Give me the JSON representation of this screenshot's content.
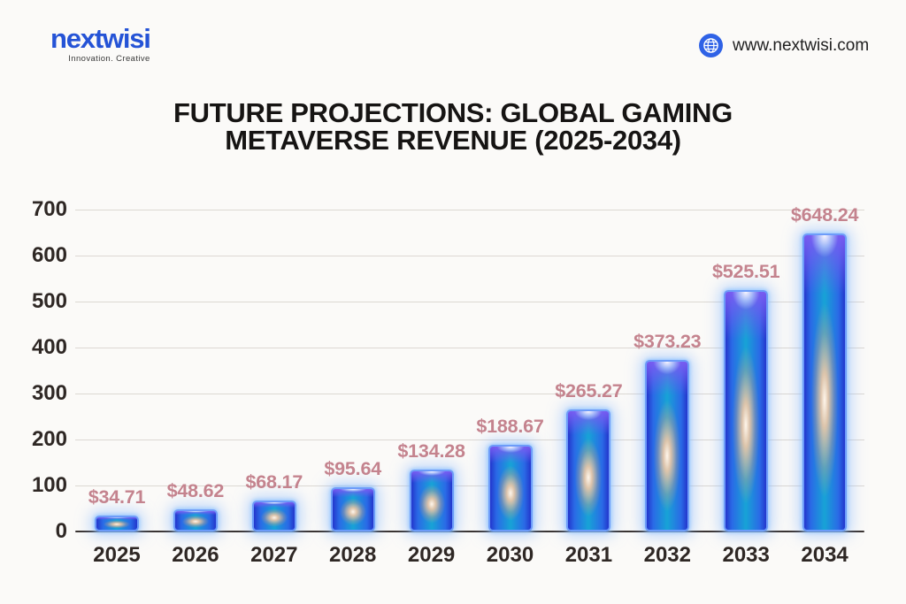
{
  "header": {
    "logo_text": "nextwisi",
    "logo_tagline": "Innovation. Creative",
    "website": "www.nextwisi.com"
  },
  "title": {
    "line1": "FUTURE PROJECTIONS: GLOBAL GAMING",
    "line2": "METAVERSE REVENUE (2025-2034)"
  },
  "chart_data": {
    "type": "bar",
    "title": "Future Projections: Global Gaming Metaverse Revenue (2025-2034)",
    "categories": [
      "2025",
      "2026",
      "2027",
      "2028",
      "2029",
      "2030",
      "2031",
      "2032",
      "2033",
      "2034"
    ],
    "values": [
      34.71,
      48.62,
      68.17,
      95.64,
      134.28,
      188.67,
      265.27,
      373.23,
      525.51,
      648.24
    ],
    "value_labels": [
      "$34.71",
      "$48.62",
      "$68.17",
      "$95.64",
      "$134.28",
      "$188.67",
      "$265.27",
      "$373.23",
      "$525.51",
      "$648.24"
    ],
    "xlabel": "",
    "ylabel": "",
    "ylim": [
      0,
      700
    ],
    "yticks": [
      0,
      100,
      200,
      300,
      400,
      500,
      600,
      700
    ],
    "grid": true,
    "legend": false
  },
  "colors": {
    "background": "#fbfaf8",
    "accent_blue": "#2553d6",
    "value_label_pink": "#c4838e",
    "axis_text": "#2e2724",
    "gridline": "#dcd8d3",
    "axis_line": "#3a3330",
    "bar_border": "#6d9cf9",
    "bar_deep_blue": "#2336cc",
    "bar_mid_blue": "#2a6ae6",
    "bar_teal": "#17a3d6",
    "bar_purple_top": "#7c5cf2",
    "flare_warm": "#ffcba3"
  }
}
